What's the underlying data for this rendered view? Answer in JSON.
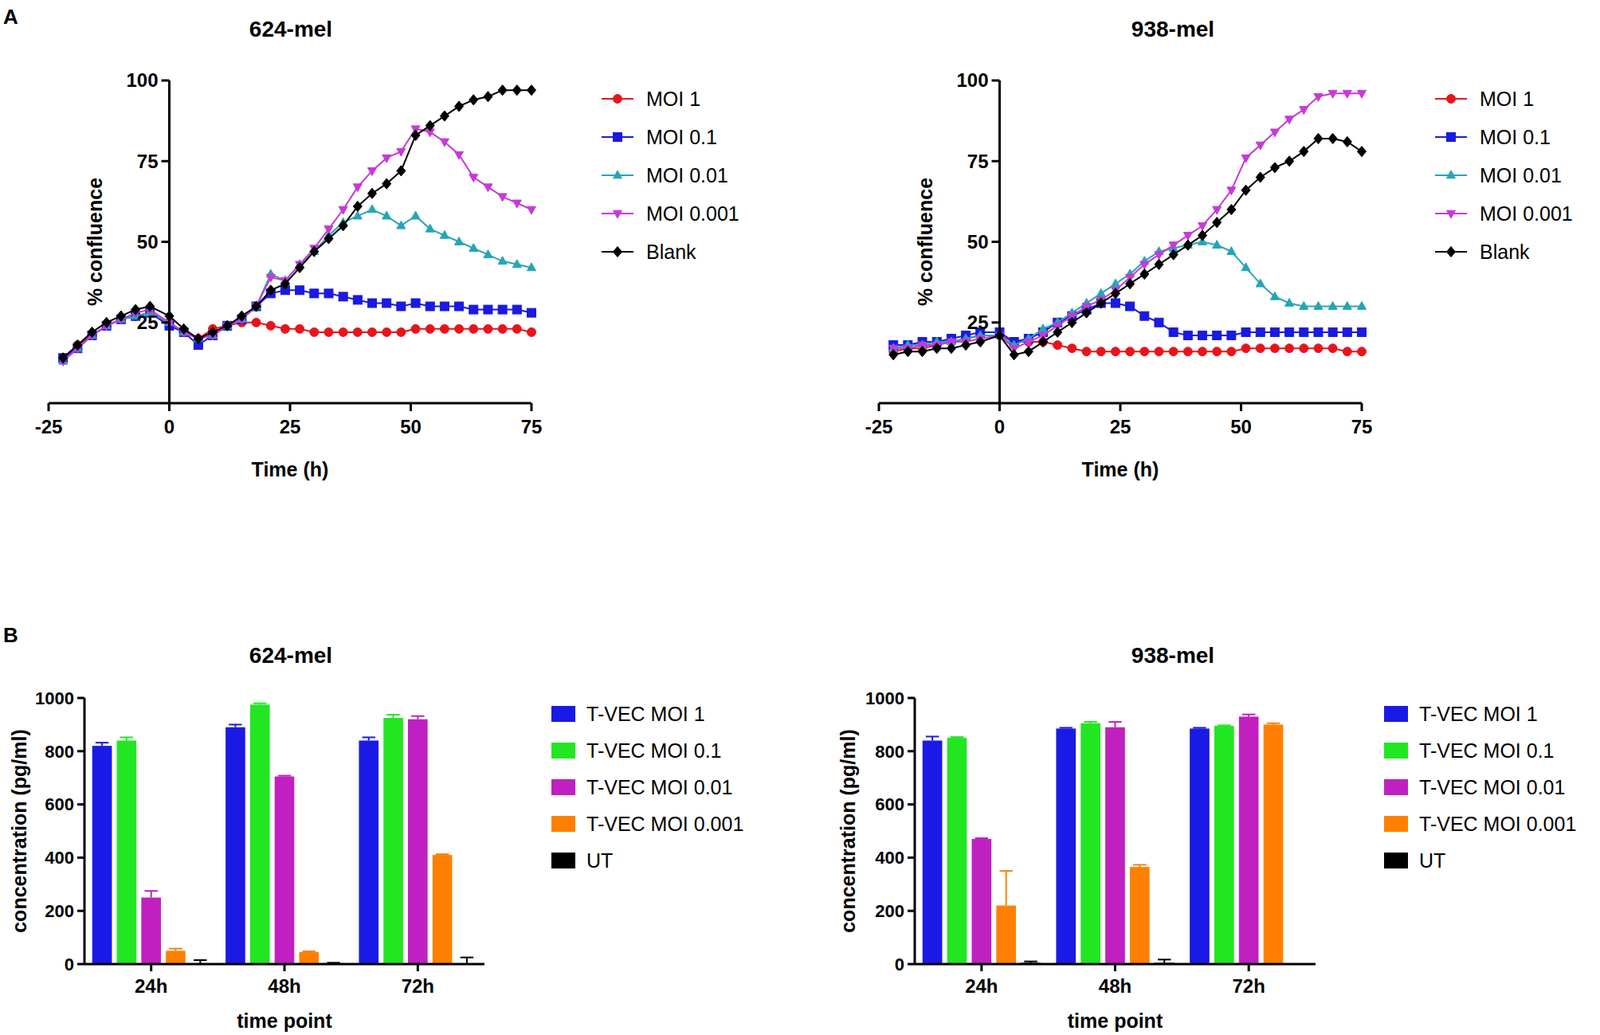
{
  "panel_labels": [
    "A",
    "B"
  ],
  "chart_data": [
    {
      "type": "line",
      "title": "624-mel",
      "x_label": "Time (h)",
      "y_label": "% confluence",
      "xlim": [
        -25,
        75
      ],
      "xticks": [
        -25,
        0,
        25,
        50,
        75
      ],
      "ylim": [
        0,
        100
      ],
      "yticks": [
        25,
        50,
        75,
        100
      ],
      "x": [
        -22,
        -19,
        -16,
        -13,
        -10,
        -7,
        -4,
        0,
        3,
        6,
        9,
        12,
        15,
        18,
        21,
        24,
        27,
        30,
        33,
        36,
        39,
        42,
        45,
        48,
        51,
        54,
        57,
        60,
        63,
        66,
        69,
        72,
        75
      ],
      "series": [
        {
          "name": "MOI 1",
          "color": "#e8141c",
          "marker": "circle",
          "values": [
            14,
            18,
            21,
            24,
            26,
            27,
            28,
            25,
            22,
            20,
            23,
            24,
            25,
            25,
            24,
            23,
            23,
            22,
            22,
            22,
            22,
            22,
            22,
            22,
            23,
            23,
            23,
            23,
            23,
            23,
            23,
            23,
            22
          ]
        },
        {
          "name": "MOI 0.1",
          "color": "#1a1ae0",
          "marker": "square",
          "values": [
            14,
            17,
            21,
            24,
            26,
            27,
            28,
            24,
            22,
            18,
            21,
            24,
            26,
            30,
            34,
            35,
            35,
            34,
            34,
            33,
            32,
            31,
            31,
            30,
            31,
            30,
            30,
            30,
            29,
            29,
            29,
            29,
            28
          ]
        },
        {
          "name": "MOI 0.01",
          "color": "#26a5b5",
          "marker": "triangle",
          "values": [
            13,
            17,
            21,
            24,
            26,
            27,
            28,
            25,
            22,
            20,
            21,
            24,
            26,
            30,
            40,
            38,
            43,
            47,
            52,
            56,
            58,
            60,
            58,
            55,
            58,
            54,
            52,
            50,
            48,
            46,
            44,
            43,
            42
          ]
        },
        {
          "name": "MOI 0.001",
          "color": "#c63ad6",
          "marker": "triangle-down",
          "values": [
            13,
            17,
            21,
            24,
            26,
            28,
            29,
            25,
            22,
            20,
            21,
            24,
            26,
            30,
            39,
            38,
            43,
            48,
            54,
            60,
            67,
            72,
            76,
            78,
            85,
            84,
            81,
            77,
            70,
            67,
            64,
            62,
            60
          ]
        },
        {
          "name": "Blank",
          "color": "#000000",
          "marker": "diamond",
          "values": [
            14,
            18,
            22,
            25,
            27,
            29,
            30,
            27,
            23,
            20,
            22,
            24,
            27,
            30,
            35,
            37,
            42,
            47,
            51,
            55,
            61,
            65,
            68,
            72,
            83,
            86,
            89,
            92,
            94,
            95,
            97,
            97,
            97
          ]
        }
      ]
    },
    {
      "type": "line",
      "title": "938-mel",
      "x_label": "Time (h)",
      "y_label": "% confluence",
      "xlim": [
        -25,
        75
      ],
      "xticks": [
        -25,
        0,
        25,
        50,
        75
      ],
      "ylim": [
        0,
        100
      ],
      "yticks": [
        25,
        50,
        75,
        100
      ],
      "x": [
        -22,
        -19,
        -16,
        -13,
        -10,
        -7,
        -4,
        0,
        3,
        6,
        9,
        12,
        15,
        18,
        21,
        24,
        27,
        30,
        33,
        36,
        39,
        42,
        45,
        48,
        51,
        54,
        57,
        60,
        63,
        66,
        69,
        72,
        75
      ],
      "series": [
        {
          "name": "MOI 1",
          "color": "#e8141c",
          "marker": "circle",
          "values": [
            16,
            17,
            17,
            18,
            19,
            20,
            21,
            21,
            19,
            19,
            19,
            18,
            17,
            16,
            16,
            16,
            16,
            16,
            16,
            16,
            16,
            16,
            16,
            16,
            17,
            17,
            17,
            17,
            17,
            17,
            17,
            16,
            16
          ]
        },
        {
          "name": "MOI 0.1",
          "color": "#1a1ae0",
          "marker": "square",
          "values": [
            18,
            18,
            19,
            19,
            20,
            21,
            22,
            22,
            19,
            20,
            22,
            25,
            27,
            29,
            31,
            31,
            30,
            27,
            25,
            22,
            21,
            21,
            21,
            21,
            22,
            22,
            22,
            22,
            22,
            22,
            22,
            22,
            22
          ]
        },
        {
          "name": "MOI 0.01",
          "color": "#26a5b5",
          "marker": "triangle",
          "values": [
            17,
            18,
            18,
            19,
            19,
            20,
            21,
            21,
            18,
            20,
            23,
            25,
            28,
            31,
            34,
            37,
            40,
            44,
            47,
            48,
            49,
            50,
            49,
            47,
            42,
            37,
            33,
            31,
            30,
            30,
            30,
            30,
            30
          ]
        },
        {
          "name": "MOI 0.001",
          "color": "#c63ad6",
          "marker": "triangle-down",
          "values": [
            17,
            17,
            18,
            18,
            19,
            19,
            20,
            21,
            17,
            19,
            21,
            24,
            27,
            30,
            32,
            35,
            39,
            43,
            46,
            49,
            52,
            55,
            60,
            66,
            76,
            80,
            84,
            88,
            91,
            95,
            96,
            96,
            96
          ]
        },
        {
          "name": "Blank",
          "color": "#000000",
          "marker": "diamond",
          "values": [
            15,
            16,
            16,
            17,
            17,
            18,
            19,
            21,
            15,
            16,
            19,
            22,
            25,
            28,
            31,
            34,
            37,
            40,
            43,
            46,
            49,
            52,
            56,
            60,
            66,
            70,
            73,
            75,
            78,
            82,
            82,
            81,
            78
          ]
        }
      ]
    },
    {
      "type": "bar",
      "title": "624-mel",
      "x_label": "time point",
      "y_label": "concentration (pg/ml)",
      "categories": [
        "24h",
        "48h",
        "72h"
      ],
      "ylim": [
        0,
        1000
      ],
      "yticks": [
        0,
        200,
        400,
        600,
        800,
        1000
      ],
      "series": [
        {
          "name": "T-VEC MOI 1",
          "color": "#1a1ae6",
          "values": [
            820,
            890,
            840
          ],
          "error": [
            12,
            10,
            12
          ]
        },
        {
          "name": "T-VEC MOI 0.1",
          "color": "#22e622",
          "values": [
            840,
            975,
            925
          ],
          "error": [
            12,
            5,
            12
          ]
        },
        {
          "name": "T-VEC MOI 0.01",
          "color": "#c020c0",
          "values": [
            250,
            705,
            920
          ],
          "error": [
            25,
            3,
            12
          ]
        },
        {
          "name": "T-VEC MOI 0.001",
          "color": "#ff8000",
          "values": [
            50,
            45,
            410
          ],
          "error": [
            8,
            3,
            3
          ]
        },
        {
          "name": "UT",
          "color": "#000000",
          "values": [
            0,
            0,
            0
          ],
          "error": [
            15,
            5,
            25
          ]
        }
      ]
    },
    {
      "type": "bar",
      "title": "938-mel",
      "x_label": "time point",
      "y_label": "concentration (pg/ml)",
      "categories": [
        "24h",
        "48h",
        "72h"
      ],
      "ylim": [
        0,
        1000
      ],
      "yticks": [
        0,
        200,
        400,
        600,
        800,
        1000
      ],
      "series": [
        {
          "name": "T-VEC MOI 1",
          "color": "#1a1ae6",
          "values": [
            840,
            885,
            885
          ],
          "error": [
            15,
            3,
            3
          ]
        },
        {
          "name": "T-VEC MOI 0.1",
          "color": "#22e622",
          "values": [
            850,
            905,
            895
          ],
          "error": [
            3,
            5,
            2
          ]
        },
        {
          "name": "T-VEC MOI 0.01",
          "color": "#c020c0",
          "values": [
            470,
            890,
            930
          ],
          "error": [
            3,
            20,
            8
          ]
        },
        {
          "name": "T-VEC MOI 0.001",
          "color": "#ff8000",
          "values": [
            220,
            365,
            900
          ],
          "error": [
            130,
            8,
            5
          ]
        },
        {
          "name": "UT",
          "color": "#000000",
          "values": [
            5,
            5,
            0
          ],
          "error": [
            5,
            12,
            0
          ]
        }
      ]
    }
  ]
}
